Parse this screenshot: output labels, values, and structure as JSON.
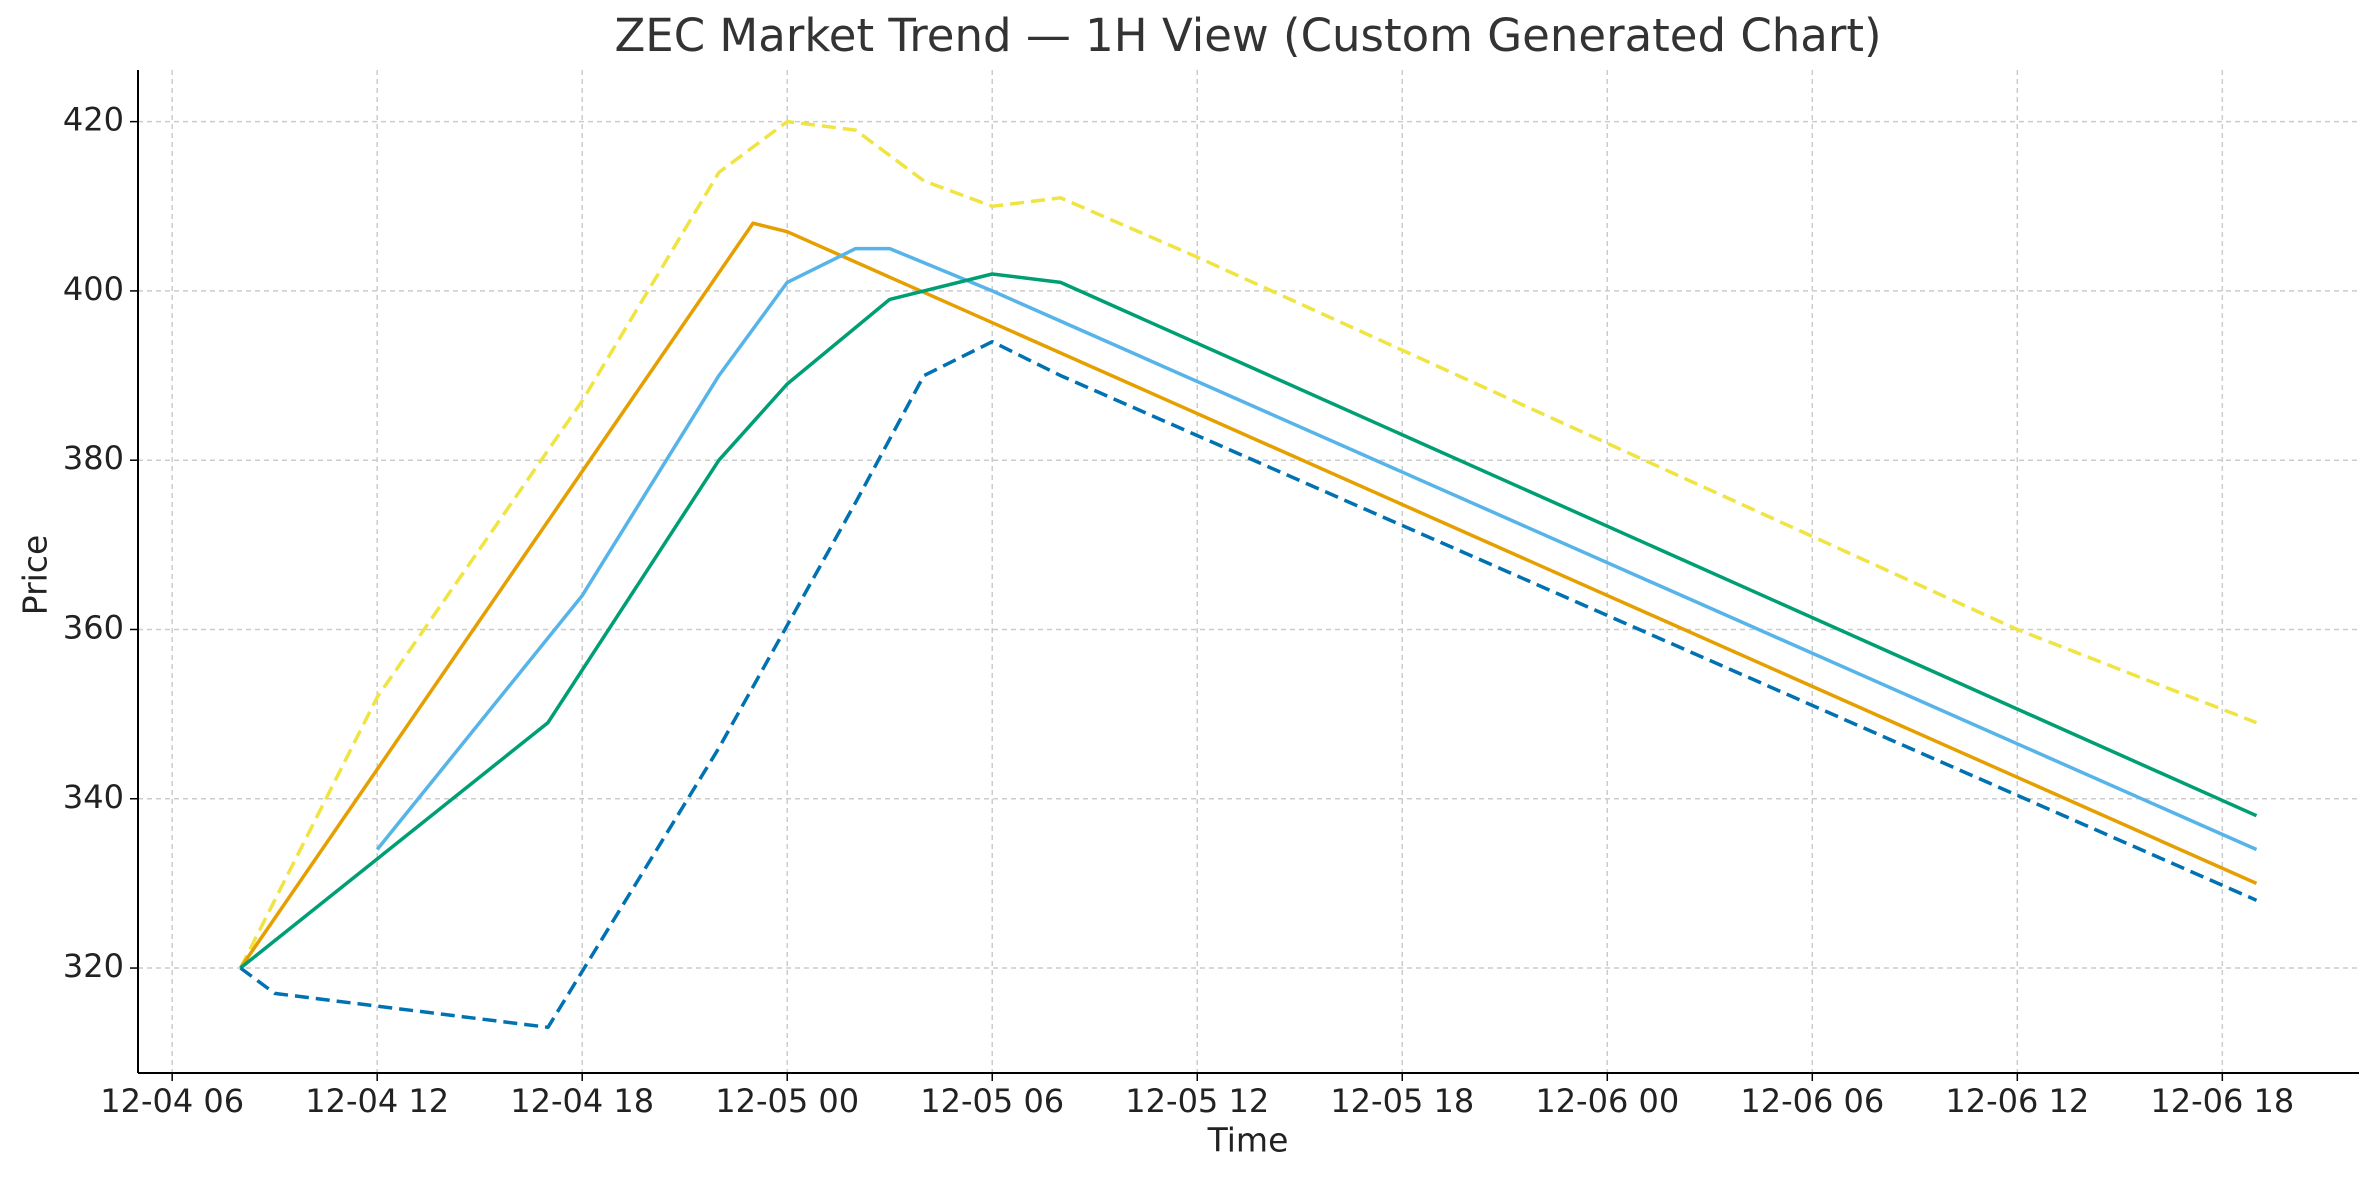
{
  "chart_data": {
    "type": "line",
    "title": "ZEC Market Trend — 1H View (Custom Generated Chart)",
    "x_label": "Time",
    "y_label": "Price",
    "grid": true,
    "xlim": [
      "12-04 05",
      "12-06 22"
    ],
    "xticks": [
      "12-04 06",
      "12-04 12",
      "12-04 18",
      "12-05 00",
      "12-05 06",
      "12-05 12",
      "12-05 18",
      "12-06 00",
      "12-06 06",
      "12-06 12",
      "12-06 18"
    ],
    "ylim": [
      307.6,
      426.1
    ],
    "yticks": [
      320,
      340,
      360,
      380,
      400,
      420
    ],
    "series": [
      {
        "color": "#f0e442",
        "dashed": true,
        "x": [
          "12-04 08",
          "12-04 09",
          "12-04 12",
          "12-04 18",
          "12-04 22",
          "12-05 00",
          "12-05 02",
          "12-05 04",
          "12-05 06",
          "12-05 08",
          "12-05 12",
          "12-05 18",
          "12-06 00",
          "12-06 06",
          "12-06 12",
          "12-06 19"
        ],
        "values": [
          320,
          328,
          352,
          387,
          414,
          420,
          419,
          413,
          410,
          411,
          404,
          393,
          382,
          371,
          360,
          349
        ]
      },
      {
        "color": "#e69f00",
        "dashed": false,
        "x": [
          "12-04 08",
          "12-04 23",
          "12-05 00",
          "12-06 19"
        ],
        "values": [
          320,
          408,
          407,
          330
        ]
      },
      {
        "color": "#56b4e9",
        "dashed": false,
        "x": [
          "12-04 12",
          "12-04 18",
          "12-04 22",
          "12-05 00",
          "12-05 02",
          "12-05 03",
          "12-05 06",
          "12-06 19"
        ],
        "values": [
          334,
          364,
          390,
          401,
          405,
          405,
          400,
          334
        ]
      },
      {
        "color": "#009e73",
        "dashed": false,
        "x": [
          "12-04 08",
          "12-04 17",
          "12-04 22",
          "12-05 00",
          "12-05 03",
          "12-05 06",
          "12-05 08",
          "12-06 19"
        ],
        "values": [
          320,
          349,
          380,
          389,
          399,
          402,
          401,
          338
        ]
      },
      {
        "color": "#0072b2",
        "dashed": true,
        "x": [
          "12-04 08",
          "12-04 09",
          "12-04 17",
          "12-04 22",
          "12-05 02",
          "12-05 04",
          "12-05 06",
          "12-05 08",
          "12-06 19"
        ],
        "values": [
          320,
          317,
          313,
          346,
          375,
          390,
          394,
          390,
          328
        ]
      }
    ]
  }
}
